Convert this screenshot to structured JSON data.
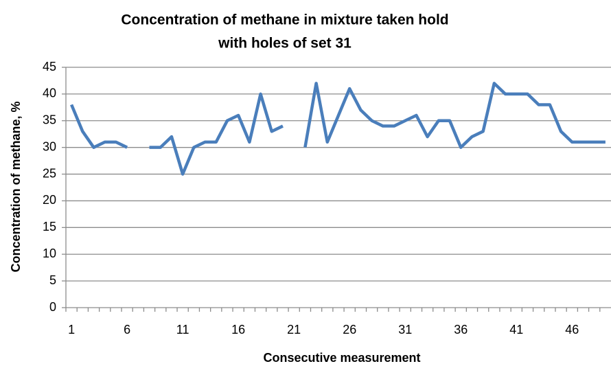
{
  "chart_data": {
    "type": "line",
    "title": [
      "Concentration of methane in mixture taken hold",
      "with holes of set 31"
    ],
    "x_label": "Consecutive measurement",
    "y_label": "Concentration of methane, %",
    "categories": [
      "1",
      null,
      null,
      null,
      null,
      "6",
      null,
      null,
      null,
      null,
      "11",
      null,
      null,
      null,
      null,
      "16",
      null,
      null,
      null,
      null,
      "21",
      null,
      null,
      null,
      null,
      "26",
      null,
      null,
      null,
      null,
      "31",
      null,
      null,
      null,
      null,
      "36",
      null,
      null,
      null,
      null,
      "41",
      null,
      null,
      null,
      null,
      "46",
      null,
      null,
      null
    ],
    "series": [
      {
        "name": "Concentration of methane",
        "color": "#4a7ebb",
        "values": [
          38,
          33,
          30,
          31,
          31,
          30,
          null,
          30,
          30,
          32,
          25,
          30,
          31,
          31,
          35,
          36,
          31,
          40,
          33,
          34,
          null,
          30,
          42,
          31,
          36,
          41,
          37,
          35,
          34,
          34,
          35,
          36,
          32,
          35,
          35,
          30,
          32,
          33,
          42,
          40,
          40,
          40,
          38,
          38,
          33,
          31,
          31,
          31,
          31
        ]
      }
    ],
    "ylim": [
      0,
      45
    ],
    "yticks": [
      0,
      5,
      10,
      15,
      20,
      25,
      30,
      35,
      40,
      45
    ],
    "grid": true
  }
}
